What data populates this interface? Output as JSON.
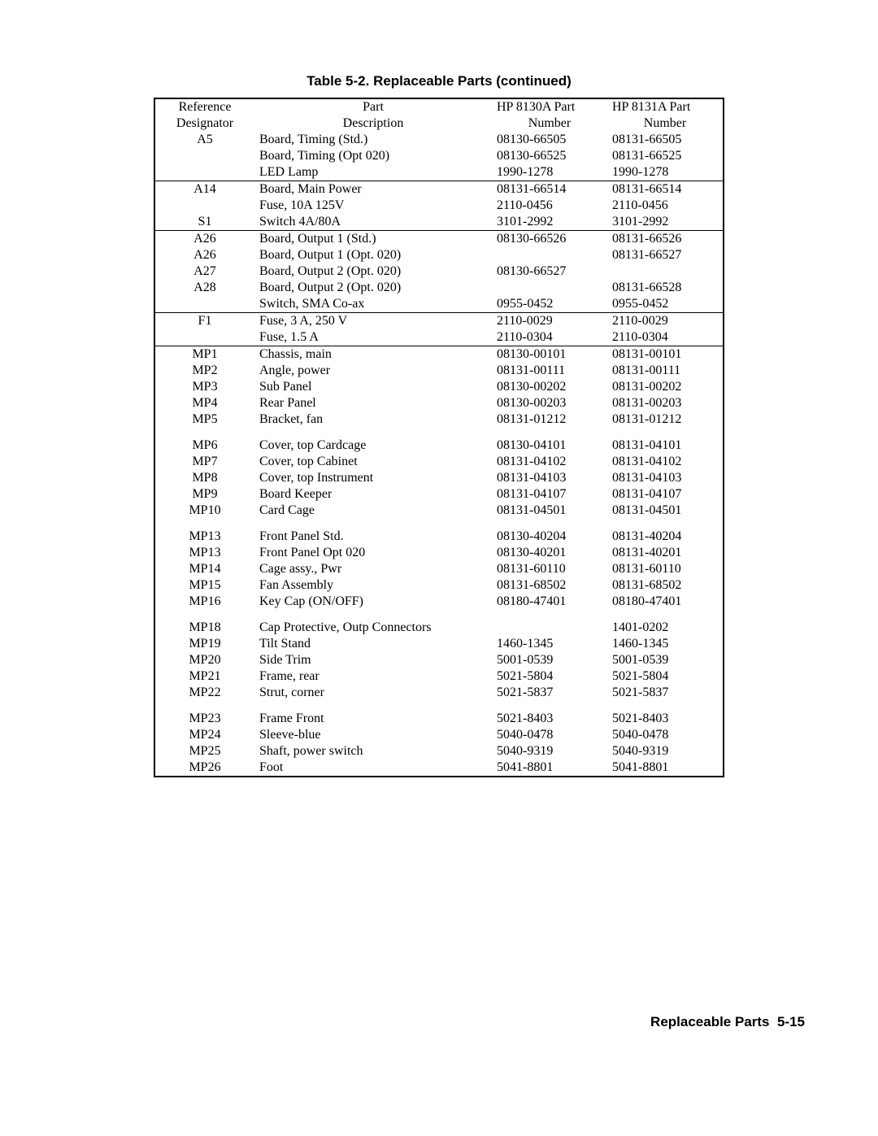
{
  "title": "Table 5-2. Replaceable Parts (continued)",
  "footer": "Replaceable Parts  5-15",
  "header": {
    "ref1": "Reference",
    "ref2": "Designator",
    "desc1": "Part",
    "desc2": "Description",
    "p1a": "HP 8130A Part",
    "p1b": "Number",
    "p2a": "HP 8131A Part",
    "p2b": "Number"
  },
  "groups": [
    {
      "rows": [
        {
          "ref": "A5",
          "desc": "Board, Timing (Std.)",
          "p1": "08130-66505",
          "p2": "08131-66505"
        },
        {
          "ref": "",
          "desc": "Board, Timing (Opt 020)",
          "p1": "08130-66525",
          "p2": "08131-66525"
        },
        {
          "ref": "",
          "desc": "LED Lamp",
          "p1": "1990-1278",
          "p2": "1990-1278"
        }
      ]
    },
    {
      "rows": [
        {
          "ref": "A14",
          "desc": "Board, Main Power",
          "p1": "08131-66514",
          "p2": "08131-66514"
        },
        {
          "ref": "",
          "desc": "Fuse, 10A 125V",
          "p1": "2110-0456",
          "p2": "2110-0456"
        },
        {
          "ref": "S1",
          "desc": "Switch 4A/80A",
          "p1": "3101-2992",
          "p2": "3101-2992"
        }
      ]
    },
    {
      "rows": [
        {
          "ref": "A26",
          "desc": "Board, Output 1 (Std.)",
          "p1": "08130-66526",
          "p2": "08131-66526"
        },
        {
          "ref": "A26",
          "desc": "Board, Output 1 (Opt. 020)",
          "p1": "",
          "p2": "08131-66527"
        },
        {
          "ref": "A27",
          "desc": "Board, Output 2 (Opt. 020)",
          "p1": "08130-66527",
          "p2": ""
        },
        {
          "ref": "A28",
          "desc": "Board, Output 2 (Opt. 020)",
          "p1": "",
          "p2": "08131-66528"
        },
        {
          "ref": "",
          "desc": "Switch, SMA Co-ax",
          "p1": "0955-0452",
          "p2": "0955-0452"
        }
      ]
    },
    {
      "rows": [
        {
          "ref": "F1",
          "desc": "Fuse, 3 A, 250 V",
          "p1": "2110-0029",
          "p2": "2110-0029"
        },
        {
          "ref": "",
          "desc": "Fuse, 1.5 A",
          "p1": "2110-0304",
          "p2": "2110-0304"
        }
      ]
    },
    {
      "rows": [
        {
          "ref": "MP1",
          "desc": "Chassis, main",
          "p1": "08130-00101",
          "p2": "08131-00101"
        },
        {
          "ref": "MP2",
          "desc": "Angle, power",
          "p1": "08131-00111",
          "p2": "08131-00111"
        },
        {
          "ref": "MP3",
          "desc": "Sub Panel",
          "p1": "08130-00202",
          "p2": "08131-00202"
        },
        {
          "ref": "MP4",
          "desc": "Rear Panel",
          "p1": "08130-00203",
          "p2": "08131-00203"
        },
        {
          "ref": "MP5",
          "desc": "Bracket, fan",
          "p1": "08131-01212",
          "p2": "08131-01212"
        },
        {
          "spacer": true
        },
        {
          "ref": "MP6",
          "desc": "Cover, top Cardcage",
          "p1": "08130-04101",
          "p2": "08131-04101"
        },
        {
          "ref": "MP7",
          "desc": "Cover, top Cabinet",
          "p1": "08131-04102",
          "p2": "08131-04102"
        },
        {
          "ref": "MP8",
          "desc": "Cover, top Instrument",
          "p1": "08131-04103",
          "p2": "08131-04103"
        },
        {
          "ref": "MP9",
          "desc": "Board Keeper",
          "p1": "08131-04107",
          "p2": "08131-04107"
        },
        {
          "ref": "MP10",
          "desc": "Card Cage",
          "p1": "08131-04501",
          "p2": "08131-04501"
        },
        {
          "spacer": true
        },
        {
          "ref": "MP13",
          "desc": "Front Panel Std.",
          "p1": "08130-40204",
          "p2": "08131-40204"
        },
        {
          "ref": "MP13",
          "desc": "Front Panel Opt 020",
          "p1": "08130-40201",
          "p2": "08131-40201"
        },
        {
          "ref": "MP14",
          "desc": "Cage assy., Pwr",
          "p1": "08131-60110",
          "p2": "08131-60110"
        },
        {
          "ref": "MP15",
          "desc": "Fan Assembly",
          "p1": "08131-68502",
          "p2": "08131-68502"
        },
        {
          "ref": "MP16",
          "desc": "Key Cap (ON/OFF)",
          "p1": "08180-47401",
          "p2": "08180-47401"
        },
        {
          "spacer": true
        },
        {
          "ref": "MP18",
          "desc": "Cap Protective, Outp Connectors",
          "p1": "",
          "p2": "1401-0202"
        },
        {
          "ref": "MP19",
          "desc": "Tilt Stand",
          "p1": "1460-1345",
          "p2": "1460-1345"
        },
        {
          "ref": "MP20",
          "desc": "Side Trim",
          "p1": "5001-0539",
          "p2": "5001-0539"
        },
        {
          "ref": "MP21",
          "desc": "Frame, rear",
          "p1": "5021-5804",
          "p2": "5021-5804"
        },
        {
          "ref": "MP22",
          "desc": "Strut, corner",
          "p1": "5021-5837",
          "p2": "5021-5837"
        },
        {
          "spacer": true
        },
        {
          "ref": "MP23",
          "desc": "Frame Front",
          "p1": "5021-8403",
          "p2": "5021-8403"
        },
        {
          "ref": "MP24",
          "desc": "Sleeve-blue",
          "p1": "5040-0478",
          "p2": "5040-0478"
        },
        {
          "ref": "MP25",
          "desc": "Shaft, power switch",
          "p1": "5040-9319",
          "p2": "5040-9319"
        },
        {
          "ref": "MP26",
          "desc": "Foot",
          "p1": "5041-8801",
          "p2": "5041-8801"
        }
      ]
    }
  ]
}
